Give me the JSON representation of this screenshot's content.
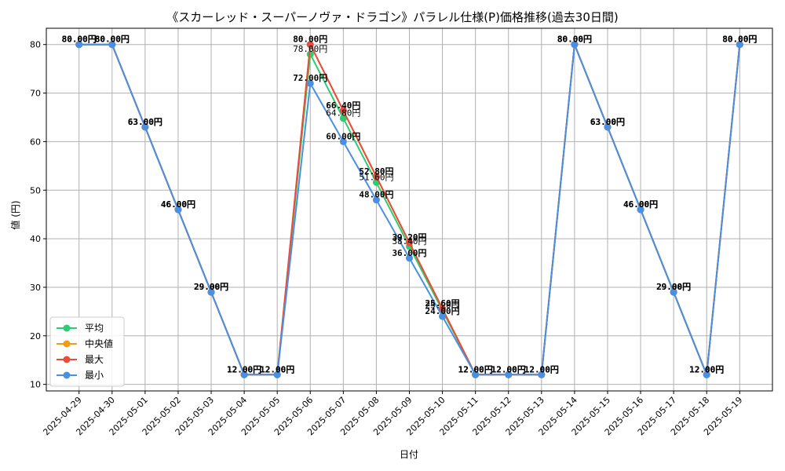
{
  "chart_data": {
    "type": "line",
    "title": "《スカーレッド・スーパーノヴァ・ドラゴン》パラレル仕様(P)価格推移(過去30日間)",
    "xlabel": "日付",
    "ylabel": "値 (円)",
    "ylim": [
      8.65,
      83.35
    ],
    "yticks": [
      10,
      20,
      30,
      40,
      50,
      60,
      70,
      80
    ],
    "grid": true,
    "legend_position": "lower-left",
    "label_suffix": "円",
    "categories": [
      "2025-04-29",
      "2025-04-30",
      "2025-05-01",
      "2025-05-02",
      "2025-05-03",
      "2025-05-04",
      "2025-05-05",
      "2025-05-06",
      "2025-05-07",
      "2025-05-08",
      "2025-05-09",
      "2025-05-10",
      "2025-05-11",
      "2025-05-12",
      "2025-05-13",
      "2025-05-14",
      "2025-05-15",
      "2025-05-16",
      "2025-05-17",
      "2025-05-18",
      "2025-05-19"
    ],
    "series": [
      {
        "name": "平均",
        "color": "#2ecc71",
        "values": [
          80,
          80,
          63,
          46,
          29,
          12,
          12,
          78,
          64.8,
          51.6,
          38.4,
          25.2,
          12,
          12,
          12,
          80,
          63,
          46,
          29,
          12,
          80
        ]
      },
      {
        "name": "中央値",
        "color": "#f39c12",
        "values": [
          80,
          80,
          63,
          46,
          29,
          12,
          12,
          80,
          66.4,
          52.8,
          39.2,
          25.6,
          12,
          12,
          12,
          80,
          63,
          46,
          29,
          12,
          80
        ]
      },
      {
        "name": "最大",
        "color": "#e74c3c",
        "values": [
          80,
          80,
          63,
          46,
          29,
          12,
          12,
          80,
          66.4,
          52.8,
          39.2,
          25.6,
          12,
          12,
          12,
          80,
          63,
          46,
          29,
          12,
          80
        ]
      },
      {
        "name": "最小",
        "color": "#4a90e2",
        "values": [
          80,
          80,
          63,
          46,
          29,
          12,
          12,
          72,
          60,
          48,
          36,
          24,
          12,
          12,
          12,
          80,
          63,
          46,
          29,
          12,
          80
        ]
      }
    ]
  }
}
